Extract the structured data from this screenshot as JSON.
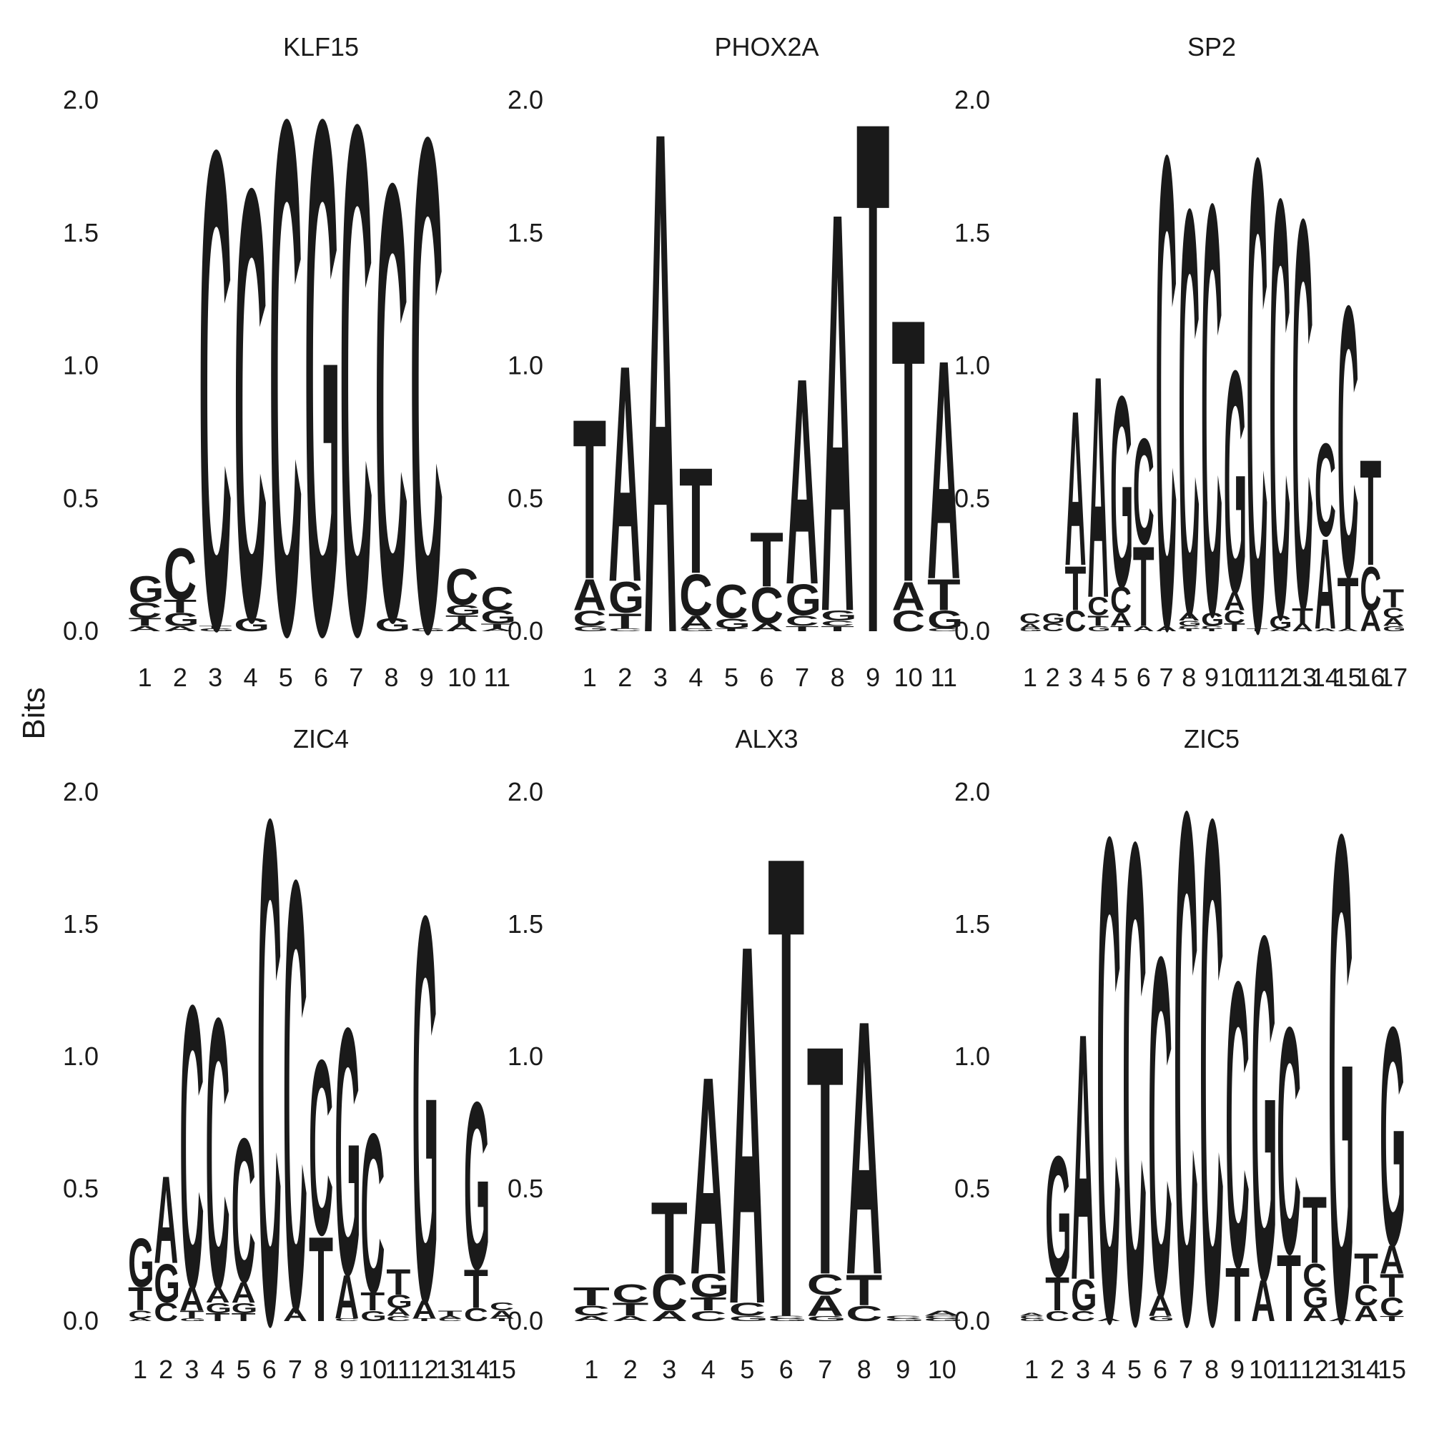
{
  "y_axis_label": "Bits",
  "colors": {
    "A": "#109648",
    "C": "#255C99",
    "G": "#F7B32B",
    "T": "#D62839"
  },
  "chart_data": [
    {
      "type": "sequence_logo",
      "title": "KLF15",
      "ylim": [
        0,
        2
      ],
      "yticks": [
        "0.0",
        "0.5",
        "1.0",
        "1.5",
        "2.0"
      ],
      "positions": [
        {
          "A": 0.02,
          "C": 0.06,
          "G": 0.1,
          "T": 0.03
        },
        {
          "A": 0.02,
          "C": 0.2,
          "G": 0.05,
          "T": 0.05
        },
        {
          "C": 1.85,
          "G": 0.01,
          "T": 0.01
        },
        {
          "C": 1.67,
          "G": 0.05
        },
        {
          "C": 1.99
        },
        {
          "G": 1.99
        },
        {
          "C": 1.97
        },
        {
          "C": 1.69,
          "G": 0.05
        },
        {
          "C": 1.91,
          "G": 0.01
        },
        {
          "A": 0.03,
          "T": 0.03,
          "G": 0.04,
          "C": 0.14
        },
        {
          "A": 0.01,
          "T": 0.02,
          "G": 0.05,
          "C": 0.09
        }
      ]
    },
    {
      "type": "sequence_logo",
      "title": "PHOX2A",
      "ylim": [
        0,
        2
      ],
      "yticks": [
        "0.0",
        "0.5",
        "1.0",
        "1.5",
        "2.0"
      ],
      "positions": [
        {
          "G": 0.02,
          "C": 0.06,
          "A": 0.12,
          "T": 0.62
        },
        {
          "C": 0.01,
          "T": 0.06,
          "G": 0.12,
          "A": 0.84
        },
        {
          "A": 1.95
        },
        {
          "G": 0.01,
          "A": 0.05,
          "C": 0.16,
          "T": 0.41
        },
        {
          "T": 0.01,
          "G": 0.04,
          "C": 0.13,
          "T2": 0.0,
          "A": 0.0,
          "X": 0.0
        },
        {
          "A": 0.03,
          "C": 0.14,
          "T": 0.21
        },
        {
          "T": 0.02,
          "C": 0.04,
          "G": 0.12,
          "A": 0.8
        },
        {
          "T": 0.02,
          "C": 0.02,
          "G": 0.04,
          "A": 1.55
        },
        {
          "T": 1.99
        },
        {
          "C": 0.08,
          "A": 0.11,
          "T": 1.02
        },
        {
          "C": 0.01,
          "G": 0.07,
          "T": 0.12,
          "A": 0.85
        }
      ]
    },
    {
      "type": "sequence_logo",
      "title": "SP2",
      "ylim": [
        0,
        2
      ],
      "yticks": [
        "0.0",
        "0.5",
        "1.0",
        "1.5",
        "2.0"
      ],
      "positions": [
        {
          "G": 0.01,
          "A": 0.02,
          "C": 0.04
        },
        {
          "C": 0.03,
          "G": 0.04,
          "C2": 0.0,
          "T": 0.0
        },
        {
          "C": 0.08,
          "T": 0.17,
          "A": 0.6
        },
        {
          "G": 0.02,
          "T": 0.04,
          "C": 0.07,
          "A": 0.86
        },
        {
          "T": 0.02,
          "A": 0.05,
          "C": 0.1,
          "G": 0.74
        },
        {
          "A": 0.02,
          "T": 0.31,
          "C": 0.41
        },
        {
          "A": 0.02,
          "C": 1.83
        },
        {
          "T": 0.01,
          "C": 0.01,
          "G": 0.02,
          "A": 0.03,
          "C2": 1.57
        },
        {
          "T": 0.01,
          "C": 0.01,
          "G": 0.05,
          "C2": 1.59
        },
        {
          "T": 0.03,
          "C": 0.05,
          "A": 0.07,
          "G": 0.86
        },
        {
          "T": 0.01,
          "C": 1.83
        },
        {
          "A": 0.01,
          "G": 0.05,
          "C": 1.62
        },
        {
          "A": 0.03,
          "T": 0.06,
          "C": 1.51
        },
        {
          "A": 0.01,
          "C": 0.36,
          "A2": 0.35
        },
        {
          "A": 0.01,
          "T": 0.2,
          "C": 1.05
        },
        {
          "A": 0.08,
          "C": 0.17,
          "T": 0.41
        },
        {
          "G": 0.02,
          "A": 0.03,
          "C": 0.04,
          "T": 0.07
        }
      ]
    },
    {
      "type": "sequence_logo",
      "title": "ZIC4",
      "ylim": [
        0,
        2
      ],
      "yticks": [
        "0.0",
        "0.5",
        "1.0",
        "1.5",
        "2.0"
      ],
      "positions": [
        {
          "A": 0.01,
          "C": 0.03,
          "T": 0.09,
          "G": 0.19
        },
        {
          "C": 0.07,
          "G": 0.15,
          "A": 0.34
        },
        {
          "G": 0.01,
          "T": 0.03,
          "A": 0.09,
          "C": 1.1
        },
        {
          "G": 0.04,
          "T": 0.03,
          "A": 0.06,
          "C": 1.05
        },
        {
          "G": 0.04,
          "T": 0.03,
          "A": 0.08,
          "C": 0.56
        },
        {
          "C": 1.96
        },
        {
          "A": 0.05,
          "C": 1.67
        },
        {
          "T": 0.33,
          "C": 0.68
        },
        {
          "C": 0.01,
          "A": 0.17,
          "G": 0.96
        },
        {
          "G": 0.04,
          "T": 0.07,
          "C": 0.62
        },
        {
          "C": 0.02,
          "A": 0.03,
          "G": 0.05,
          "T": 0.1
        },
        {
          "T": 0.01,
          "A": 0.07,
          "G": 1.5
        },
        {
          "C": 0.01,
          "A": 0.01,
          "T": 0.02
        },
        {
          "C": 0.05,
          "T": 0.15,
          "G": 0.65
        },
        {
          "T": 0.01,
          "A": 0.03,
          "C": 0.03
        }
      ]
    },
    {
      "type": "sequence_logo",
      "title": "ALX3",
      "ylim": [
        0,
        2
      ],
      "yticks": [
        "0.0",
        "0.5",
        "1.0",
        "1.5",
        "2.0"
      ],
      "positions": [
        {
          "A": 0.02,
          "C": 0.04,
          "T": 0.07
        },
        {
          "A": 0.02,
          "T": 0.05,
          "C": 0.07
        },
        {
          "A": 0.04,
          "C": 0.14,
          "T": 0.28
        },
        {
          "C": 0.04,
          "T": 0.05,
          "G": 0.09,
          "A": 0.77
        },
        {
          "G": 0.02,
          "C": 0.05,
          "A": 1.4
        },
        {
          "G": 0.01,
          "C": 0.01,
          "T": 1.8
        },
        {
          "G": 0.02,
          "A": 0.08,
          "C": 0.08,
          "T": 0.89
        },
        {
          "C": 0.06,
          "T": 0.12,
          "A": 0.99
        },
        {
          "G": 0.01,
          "C": 0.01
        },
        {
          "G": 0.01,
          "C": 0.01,
          "A": 0.02
        }
      ]
    },
    {
      "type": "sequence_logo",
      "title": "ZIC5",
      "ylim": [
        0,
        2
      ],
      "yticks": [
        "0.0",
        "0.5",
        "1.0",
        "1.5",
        "2.0"
      ],
      "positions": [
        {
          "G": 0.01,
          "C": 0.01,
          "A": 0.01
        },
        {
          "C": 0.04,
          "T": 0.13,
          "G": 0.47
        },
        {
          "C": 0.04,
          "G": 0.12,
          "A": 0.96
        },
        {
          "A": 0.01,
          "C": 1.88
        },
        {
          "C": 1.87
        },
        {
          "G": 0.02,
          "A": 0.08,
          "C": 1.32
        },
        {
          "C": 1.99
        },
        {
          "C": 1.96
        },
        {
          "T": 0.21,
          "C": 1.11
        },
        {
          "A": 0.16,
          "G": 1.34
        },
        {
          "T": 0.26,
          "C": 0.88
        },
        {
          "A": 0.05,
          "G": 0.08,
          "C": 0.09,
          "T": 0.26
        },
        {
          "A": 0.01,
          "G": 1.89
        },
        {
          "A": 0.06,
          "C": 0.08,
          "T": 0.12
        },
        {
          "T": 0.02,
          "C": 0.07,
          "A": 0.11,
          "T2": 0.09,
          "G": 0.85,
          "C2": 0.0
        }
      ]
    }
  ]
}
